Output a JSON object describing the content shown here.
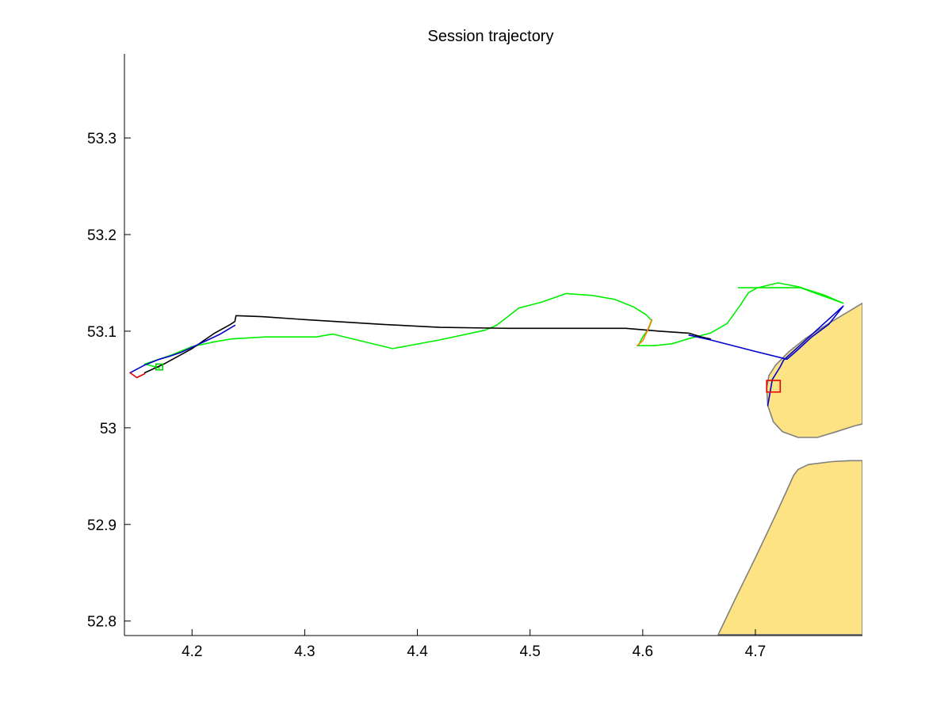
{
  "chart_data": {
    "type": "line",
    "title": "Session trajectory",
    "xlabel": "",
    "ylabel": "",
    "xlim": [
      4.14,
      4.795
    ],
    "ylim": [
      52.785,
      53.387
    ],
    "x_ticks": [
      {
        "value": 4.2,
        "label": "4.2"
      },
      {
        "value": 4.3,
        "label": "4.3"
      },
      {
        "value": 4.4,
        "label": "4.4"
      },
      {
        "value": 4.5,
        "label": "4.5"
      },
      {
        "value": 4.6,
        "label": "4.6"
      },
      {
        "value": 4.7,
        "label": "4.7"
      }
    ],
    "y_ticks": [
      {
        "value": 52.8,
        "label": "52.8"
      },
      {
        "value": 52.9,
        "label": "52.9"
      },
      {
        "value": 53.0,
        "label": "53"
      },
      {
        "value": 53.1,
        "label": "53.1"
      },
      {
        "value": 53.2,
        "label": "53.2"
      },
      {
        "value": 53.3,
        "label": "53.3"
      }
    ],
    "grid": false,
    "legend": "none",
    "land": {
      "fill": "#fde384",
      "stroke": "#808080",
      "polygons": [
        [
          [
            4.795,
            53.129
          ],
          [
            4.765,
            53.108
          ],
          [
            4.745,
            53.093
          ],
          [
            4.73,
            53.079
          ],
          [
            4.718,
            53.065
          ],
          [
            4.712,
            53.054
          ],
          [
            4.71,
            53.041
          ],
          [
            4.711,
            53.023
          ],
          [
            4.716,
            53.006
          ],
          [
            4.724,
            52.996
          ],
          [
            4.738,
            52.99
          ],
          [
            4.755,
            52.99
          ],
          [
            4.772,
            52.996
          ],
          [
            4.788,
            53.002
          ],
          [
            4.795,
            53.004
          ]
        ],
        [
          [
            4.795,
            52.966
          ],
          [
            4.784,
            52.966
          ],
          [
            4.768,
            52.965
          ],
          [
            4.747,
            52.962
          ],
          [
            4.738,
            52.957
          ],
          [
            4.734,
            52.951
          ],
          [
            4.729,
            52.938
          ],
          [
            4.718,
            52.91
          ],
          [
            4.701,
            52.868
          ],
          [
            4.683,
            52.825
          ],
          [
            4.667,
            52.786
          ],
          [
            4.795,
            52.786
          ]
        ]
      ]
    },
    "series": [
      {
        "color": "#00ee00",
        "x": [
          4.171,
          4.158,
          4.181,
          4.2,
          4.22,
          4.235,
          4.265,
          4.31,
          4.325,
          4.378,
          4.42,
          4.46,
          4.47,
          4.478,
          4.49,
          4.51,
          4.532,
          4.555,
          4.575,
          4.592,
          4.603,
          4.608,
          4.605,
          4.6,
          4.596,
          4.61,
          4.626,
          4.64,
          4.66,
          4.675,
          4.686,
          4.694,
          4.702,
          4.72,
          4.738,
          4.762,
          4.778,
          4.74,
          4.702,
          4.685
        ],
        "y": [
          53.062,
          53.066,
          53.075,
          53.084,
          53.089,
          53.092,
          53.094,
          53.094,
          53.097,
          53.082,
          53.091,
          53.101,
          53.106,
          53.113,
          53.124,
          53.13,
          53.139,
          53.137,
          53.133,
          53.125,
          53.117,
          53.111,
          53.102,
          53.094,
          53.085,
          53.085,
          53.087,
          53.092,
          53.098,
          53.108,
          53.126,
          53.14,
          53.145,
          53.15,
          53.146,
          53.137,
          53.129,
          53.145,
          53.145,
          53.145
        ]
      },
      {
        "color": "#000000",
        "x": [
          4.158,
          4.175,
          4.2,
          4.22,
          4.234,
          4.238,
          4.239,
          4.241,
          4.262,
          4.3,
          4.37,
          4.42,
          4.48,
          4.55,
          4.585,
          4.615,
          4.641,
          4.652,
          4.66
        ],
        "y": [
          53.057,
          53.066,
          53.082,
          53.098,
          53.107,
          53.11,
          53.116,
          53.116,
          53.115,
          53.112,
          53.107,
          53.104,
          53.103,
          53.103,
          53.103,
          53.1,
          53.098,
          53.094,
          53.092
        ]
      },
      {
        "color": "#0000cc",
        "x": [
          4.145,
          4.158,
          4.171,
          4.18,
          4.19,
          4.205,
          4.225,
          4.238
        ],
        "y": [
          53.057,
          53.065,
          53.071,
          53.074,
          53.078,
          53.086,
          53.097,
          53.106
        ]
      },
      {
        "color": "#0000cc",
        "x": [
          4.641,
          4.66,
          4.7,
          4.728,
          4.736,
          4.75,
          4.765,
          4.778,
          4.725,
          4.722,
          4.715,
          4.711
        ],
        "y": [
          53.096,
          53.091,
          53.079,
          53.071,
          53.079,
          53.094,
          53.107,
          53.126,
          53.07,
          53.063,
          53.05,
          53.023
        ]
      },
      {
        "color": "#ff7f00",
        "x": [
          4.595,
          4.6,
          4.604,
          4.608
        ],
        "y": [
          53.085,
          53.09,
          53.1,
          53.112
        ]
      },
      {
        "color": "#e60000",
        "x": [
          4.145,
          4.151,
          4.158
        ],
        "y": [
          53.057,
          53.052,
          53.056
        ]
      }
    ],
    "markers": [
      {
        "shape": "square",
        "color": "#00cc00",
        "x": 4.171,
        "y": 53.063,
        "half_width": 0.003,
        "half_height": 0.003
      },
      {
        "shape": "square",
        "color": "#e60000",
        "x": 4.716,
        "y": 53.043,
        "half_width": 0.006,
        "half_height": 0.006
      }
    ]
  }
}
